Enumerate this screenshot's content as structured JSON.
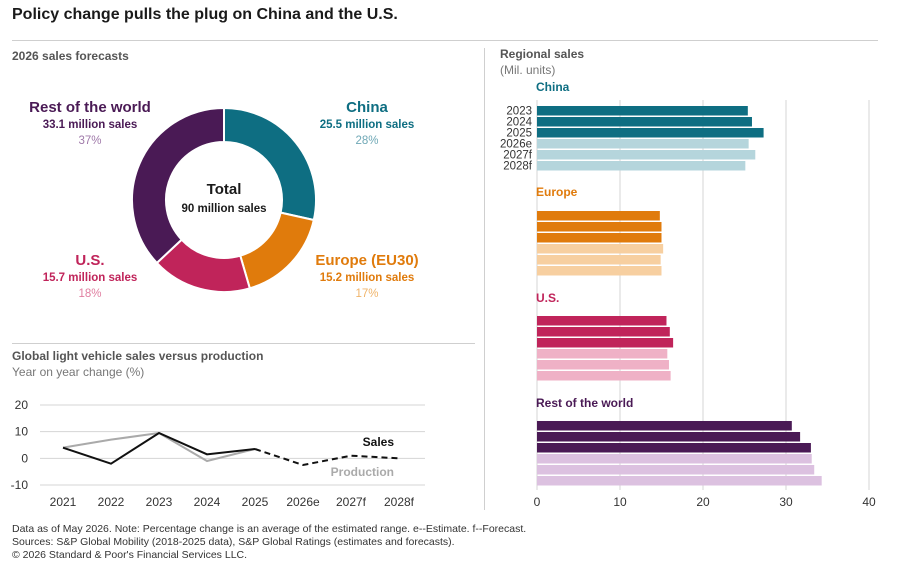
{
  "title": "Policy change pulls the plug on China and the U.S.",
  "donut": {
    "section_title": "2026 sales forecasts",
    "center_title": "Total",
    "center_sub": "90 million sales",
    "segments": [
      {
        "label": "China",
        "sales": "25.5 million sales",
        "pct": "28%",
        "value": 25.5,
        "color": "#0e6e82",
        "pct_color": "#6fa8b6"
      },
      {
        "label": "Europe (EU30)",
        "sales": "15.2 million sales",
        "pct": "17%",
        "value": 15.2,
        "color": "#e07b0c",
        "pct_color": "#f0b46a"
      },
      {
        "label": "U.S.",
        "sales": "15.7 million sales",
        "pct": "18%",
        "value": 15.7,
        "color": "#c0245a",
        "pct_color": "#e07ea0"
      },
      {
        "label": "Rest of the world",
        "sales": "33.1 million sales",
        "pct": "37%",
        "value": 33.1,
        "color": "#4a1a55",
        "pct_color": "#a07aaa"
      }
    ]
  },
  "line_section": {
    "title": "Global light vehicle sales versus production",
    "subtitle": "Year on year change (%)"
  },
  "bar_section": {
    "title": "Regional sales",
    "subtitle": "(Mil. units)"
  },
  "chart_data": [
    {
      "type": "pie",
      "title": "2026 sales forecasts",
      "categories": [
        "China",
        "Europe (EU30)",
        "U.S.",
        "Rest of the world"
      ],
      "values": [
        25.5,
        15.2,
        15.7,
        33.1
      ],
      "center_label": "Total 90 million sales"
    },
    {
      "type": "line",
      "title": "Global light vehicle sales versus production",
      "ylabel": "Year on year change (%)",
      "categories": [
        "2021",
        "2022",
        "2023",
        "2024",
        "2025",
        "2026e",
        "2027f",
        "2028f"
      ],
      "ylim": [
        -10,
        20
      ],
      "yticks": [
        20,
        10,
        0,
        -10
      ],
      "grid": true,
      "series": [
        {
          "name": "Sales",
          "color": "#111111",
          "values": [
            4,
            -2,
            9.5,
            1.5,
            3.5,
            -2.5,
            1,
            0
          ],
          "dashed_from_index": 4
        },
        {
          "name": "Production",
          "color": "#aaaaaa",
          "values": [
            4,
            7,
            9.5,
            -1,
            3.5,
            null,
            null,
            null
          ]
        }
      ]
    },
    {
      "type": "bar",
      "orientation": "horizontal",
      "title": "Regional sales",
      "xlabel": "(Mil. units)",
      "xlim": [
        0,
        40
      ],
      "xticks": [
        0,
        10,
        20,
        30,
        40
      ],
      "grid": true,
      "categories": [
        "2023",
        "2024",
        "2025",
        "2026e",
        "2027f",
        "2028f"
      ],
      "panels": [
        {
          "name": "China",
          "color": "#0e6e82",
          "light": "#b5d5dc",
          "label_color": "#0e6e82",
          "values": [
            25.4,
            25.9,
            27.3,
            25.5,
            26.3,
            25.1
          ]
        },
        {
          "name": "Europe",
          "color": "#e07b0c",
          "light": "#f7cfa0",
          "label_color": "#e07b0c",
          "values": [
            14.8,
            15.0,
            15.0,
            15.2,
            14.9,
            15.0
          ]
        },
        {
          "name": "U.S.",
          "color": "#c0245a",
          "light": "#efb1c6",
          "label_color": "#c0245a",
          "values": [
            15.6,
            16.0,
            16.4,
            15.7,
            15.9,
            16.1
          ]
        },
        {
          "name": "Rest of the world",
          "color": "#4a1a55",
          "light": "#dcc1e0",
          "label_color": "#4a1a55",
          "values": [
            30.7,
            31.7,
            33.0,
            33.1,
            33.4,
            34.3
          ]
        }
      ]
    }
  ],
  "footer": {
    "line1": "Data as of May 2026. Note: Percentage change is an average of the estimated range. e--Estimate. f--Forecast.",
    "line2": "Sources: S&P Global Mobility (2018-2025 data), S&P Global Ratings (estimates and forecasts).",
    "line3": "© 2026 Standard & Poor's Financial Services LLC."
  }
}
